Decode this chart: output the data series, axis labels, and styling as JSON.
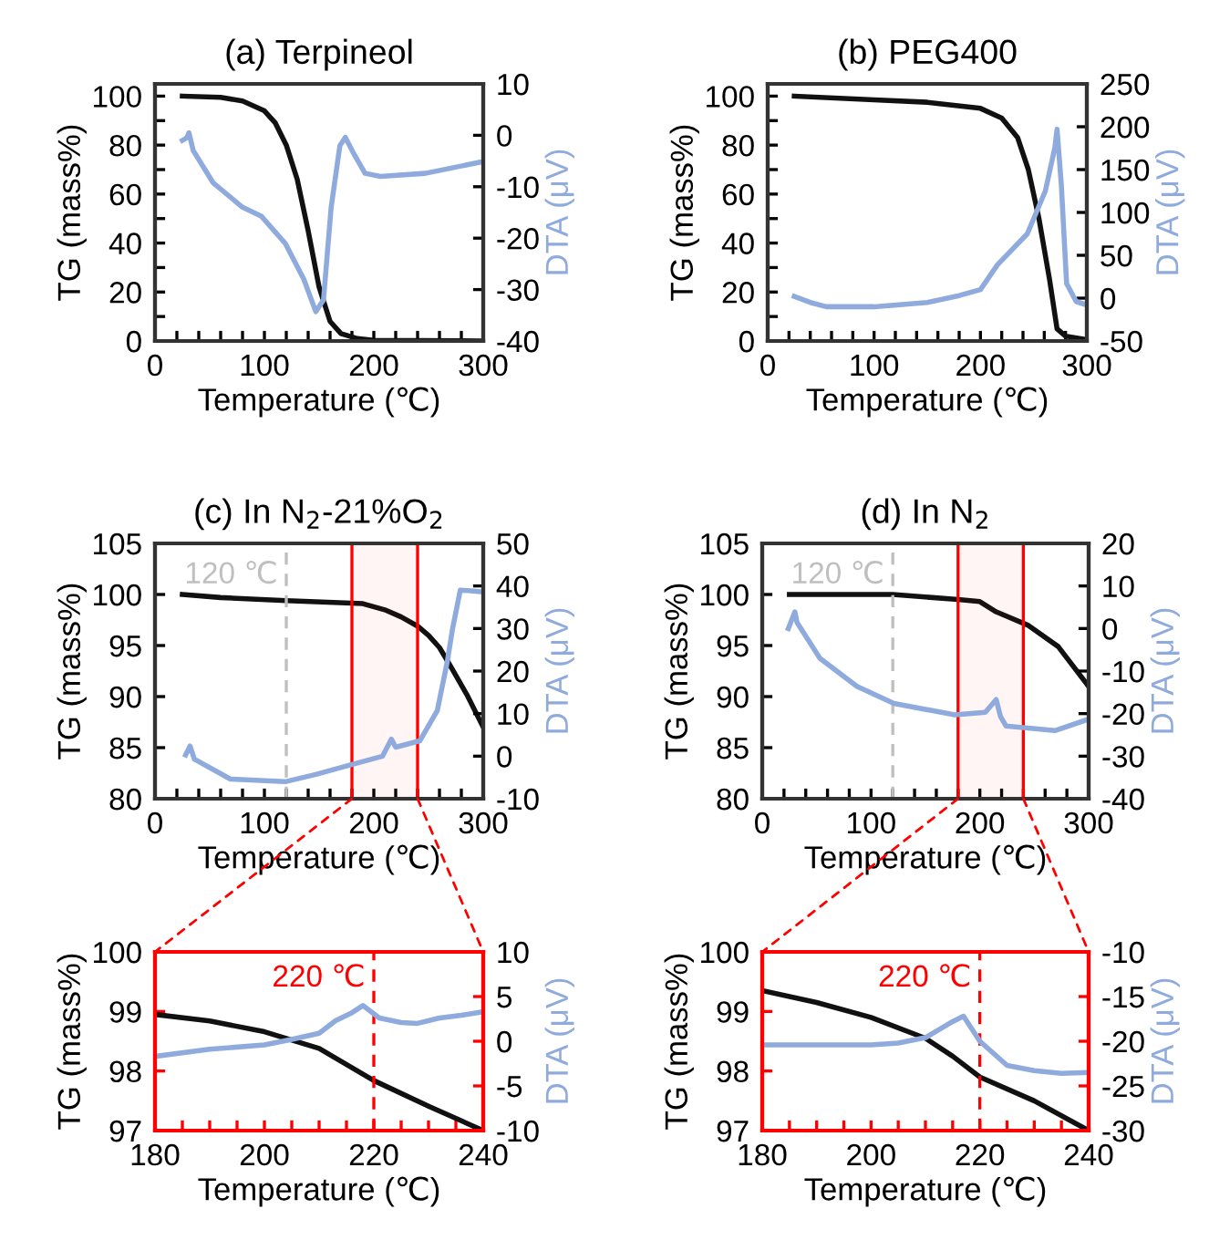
{
  "chart_data": [
    {
      "type": "line",
      "title": "(a) Terpineol",
      "xlabel": "Temperature (℃)",
      "ylabel": "TG (mass%)",
      "y2label": "DTA (μV)",
      "xlim": [
        0,
        300
      ],
      "xticks": [
        0,
        {
          "value": 20,
          "label": null
        },
        {
          "value": 40,
          "label": null
        },
        {
          "value": 60,
          "label": null
        },
        {
          "value": 80,
          "label": null
        },
        100,
        {
          "value": 120,
          "label": null
        },
        {
          "value": 140,
          "label": null
        },
        {
          "value": 160,
          "label": null
        },
        {
          "value": 180,
          "label": null
        },
        200,
        {
          "value": 220,
          "label": null
        },
        {
          "value": 240,
          "label": null
        },
        {
          "value": 260,
          "label": null
        },
        {
          "value": 280,
          "label": null
        },
        300
      ],
      "ylim": [
        0,
        105
      ],
      "yticks": [
        0,
        {
          "value": 10,
          "label": null
        },
        20,
        {
          "value": 30,
          "label": null
        },
        40,
        {
          "value": 50,
          "label": null
        },
        60,
        {
          "value": 70,
          "label": null
        },
        80,
        {
          "value": 90,
          "label": null
        },
        100
      ],
      "y2lim": [
        -40,
        10
      ],
      "y2ticks": [
        -40,
        -30,
        -20,
        -10,
        0,
        10
      ],
      "series": [
        {
          "color": "#111111",
          "x": [
            25,
            60,
            80,
            100,
            110,
            120,
            130,
            140,
            150,
            160,
            170,
            185,
            200,
            300
          ],
          "values": [
            100,
            99.5,
            98,
            94,
            89,
            80,
            66,
            45,
            22,
            8,
            3,
            1,
            0.3,
            0
          ]
        },
        {
          "color": "#8faadc",
          "axis": "y2",
          "x": [
            25,
            29,
            31,
            35,
            53,
            80,
            97,
            119,
            136,
            147,
            154,
            161,
            169,
            174,
            181,
            192,
            206,
            247,
            300
          ],
          "values": [
            -1,
            -0.5,
            0.5,
            -3,
            -9.2,
            -14,
            -15.7,
            -21,
            -28,
            -34.3,
            -32,
            -14,
            -2,
            -0.4,
            -3.3,
            -7.4,
            -8,
            -7.4,
            -5.1
          ]
        }
      ]
    },
    {
      "type": "line",
      "title": "(b) PEG400",
      "xlabel": "Temperature (℃)",
      "ylabel": "TG (mass%)",
      "y2label": "DTA (μV)",
      "xlim": [
        0,
        300
      ],
      "xticks": [
        0,
        {
          "value": 20,
          "label": null
        },
        {
          "value": 40,
          "label": null
        },
        {
          "value": 60,
          "label": null
        },
        {
          "value": 80,
          "label": null
        },
        100,
        {
          "value": 120,
          "label": null
        },
        {
          "value": 140,
          "label": null
        },
        {
          "value": 160,
          "label": null
        },
        {
          "value": 180,
          "label": null
        },
        200,
        {
          "value": 220,
          "label": null
        },
        {
          "value": 240,
          "label": null
        },
        {
          "value": 260,
          "label": null
        },
        {
          "value": 280,
          "label": null
        },
        300
      ],
      "ylim": [
        0,
        105
      ],
      "yticks": [
        0,
        {
          "value": 10,
          "label": null
        },
        20,
        {
          "value": 30,
          "label": null
        },
        40,
        {
          "value": 50,
          "label": null
        },
        60,
        {
          "value": 70,
          "label": null
        },
        80,
        {
          "value": 90,
          "label": null
        },
        100
      ],
      "y2lim": [
        -50,
        250
      ],
      "y2ticks": [
        -50,
        0,
        50,
        100,
        150,
        200,
        250
      ],
      "series": [
        {
          "color": "#111111",
          "x": [
            25,
            100,
            150,
            200,
            220,
            235,
            245,
            255,
            265,
            272,
            280,
            300
          ],
          "values": [
            100,
            98.5,
            97.5,
            95,
            91,
            83,
            70,
            50,
            25,
            5,
            2,
            0.5
          ]
        },
        {
          "color": "#8faadc",
          "axis": "y2",
          "x": [
            25,
            40,
            55,
            100,
            150,
            180,
            200,
            216,
            244,
            261,
            270,
            272,
            276,
            281,
            290,
            300
          ],
          "values": [
            2,
            -5,
            -10,
            -10,
            -5,
            3,
            10,
            39,
            75,
            125,
            176,
            197,
            133,
            17,
            -4,
            -8
          ]
        }
      ]
    },
    {
      "type": "line",
      "title": "(c) In N$_{2}$-21%O$_{2}$",
      "xlabel": "Temperature (℃)",
      "ylabel": "TG (mass%)",
      "y2label": "DTA (μV)",
      "xlim": [
        0,
        300
      ],
      "xticks": [
        0,
        {
          "value": 20,
          "label": null
        },
        {
          "value": 40,
          "label": null
        },
        {
          "value": 60,
          "label": null
        },
        {
          "value": 80,
          "label": null
        },
        100,
        {
          "value": 120,
          "label": null
        },
        {
          "value": 140,
          "label": null
        },
        {
          "value": 160,
          "label": null
        },
        {
          "value": 180,
          "label": null
        },
        200,
        {
          "value": 220,
          "label": null
        },
        {
          "value": 240,
          "label": null
        },
        {
          "value": 260,
          "label": null
        },
        {
          "value": 280,
          "label": null
        },
        300
      ],
      "ylim": [
        80,
        105
      ],
      "yticks": [
        80,
        85,
        90,
        95,
        100,
        105
      ],
      "y2lim": [
        -10,
        50
      ],
      "y2ticks": [
        -10,
        0,
        10,
        20,
        30,
        40,
        50
      ],
      "ref_lines": [
        {
          "axis": "x",
          "value": 120,
          "label": "120 ℃",
          "color": "#bfbfbf",
          "line_style": "dashed"
        }
      ],
      "bands": [
        {
          "axis": "x",
          "from": 180,
          "to": 240,
          "color": "#ff0000"
        }
      ],
      "series": [
        {
          "color": "#111111",
          "x": [
            25,
            60,
            120,
            190,
            210,
            225,
            240,
            250,
            260,
            270,
            285,
            300
          ],
          "values": [
            100,
            99.7,
            99.4,
            99.1,
            98.5,
            97.8,
            96.9,
            96,
            94.8,
            93,
            90.2,
            87
          ]
        },
        {
          "color": "#8faadc",
          "axis": "y2",
          "x": [
            28,
            32,
            36,
            69,
            119,
            147,
            178,
            208,
            216,
            220,
            242,
            258,
            267,
            272,
            279,
            286,
            300
          ],
          "values": [
            0.3,
            2.4,
            -0.7,
            -5.4,
            -6,
            -4.3,
            -2.1,
            0,
            4,
            2.1,
            3.6,
            10.7,
            22,
            30,
            39,
            38.9,
            38.6
          ]
        }
      ]
    },
    {
      "type": "line",
      "title": "(d) In N$_{2}$",
      "xlabel": "Temperature (℃)",
      "ylabel": "TG (mass%)",
      "y2label": "DTA (μV)",
      "xlim": [
        0,
        300
      ],
      "xticks": [
        0,
        {
          "value": 20,
          "label": null
        },
        {
          "value": 40,
          "label": null
        },
        {
          "value": 60,
          "label": null
        },
        {
          "value": 80,
          "label": null
        },
        100,
        {
          "value": 120,
          "label": null
        },
        {
          "value": 140,
          "label": null
        },
        {
          "value": 160,
          "label": null
        },
        {
          "value": 180,
          "label": null
        },
        200,
        {
          "value": 220,
          "label": null
        },
        {
          "value": 240,
          "label": null
        },
        {
          "value": 260,
          "label": null
        },
        {
          "value": 280,
          "label": null
        },
        300
      ],
      "ylim": [
        80,
        105
      ],
      "yticks": [
        80,
        85,
        90,
        95,
        100,
        105
      ],
      "y2lim": [
        -40,
        20
      ],
      "y2ticks": [
        -40,
        -30,
        -20,
        -10,
        0,
        10,
        20
      ],
      "ref_lines": [
        {
          "axis": "x",
          "value": 120,
          "label": "120 ℃",
          "color": "#bfbfbf",
          "line_style": "dashed"
        }
      ],
      "bands": [
        {
          "axis": "x",
          "from": 180,
          "to": 240,
          "color": "#ff0000"
        }
      ],
      "series": [
        {
          "color": "#111111",
          "x": [
            25,
            120,
            180,
            200,
            215,
            244,
            272,
            300
          ],
          "values": [
            100,
            100,
            99.5,
            99.3,
            98.3,
            97,
            94.9,
            91
          ]
        },
        {
          "color": "#8faadc",
          "axis": "y2",
          "x": [
            24,
            30,
            32,
            53,
            87,
            121,
            177,
            205,
            215,
            219,
            224,
            269,
            300
          ],
          "values": [
            0,
            3.9,
            1.4,
            -7,
            -13.6,
            -17.6,
            -20.3,
            -19.7,
            -16.7,
            -20.7,
            -22.9,
            -24,
            -21.3
          ]
        }
      ]
    },
    {
      "type": "line",
      "xlabel": "Temperature (℃)",
      "ylabel": "TG (mass%)",
      "y2label": "DTA (μV)",
      "xlim": [
        180,
        240
      ],
      "xticks": [
        180,
        {
          "value": 185,
          "label": null
        },
        {
          "value": 190,
          "label": null
        },
        {
          "value": 195,
          "label": null
        },
        200,
        {
          "value": 205,
          "label": null
        },
        {
          "value": 210,
          "label": null
        },
        {
          "value": 215,
          "label": null
        },
        220,
        {
          "value": 225,
          "label": null
        },
        {
          "value": 230,
          "label": null
        },
        {
          "value": 235,
          "label": null
        },
        240
      ],
      "ylim": [
        97,
        100
      ],
      "yticks": [
        97,
        98,
        99,
        100
      ],
      "y2lim": [
        -10,
        10
      ],
      "y2ticks": [
        -10,
        -5,
        0,
        5,
        10
      ],
      "ref_lines": [
        {
          "axis": "x",
          "value": 220,
          "label": "220 ℃",
          "color": "#ff0000",
          "line_style": "dashed"
        }
      ],
      "series": [
        {
          "color": "#111111",
          "x": [
            180,
            190,
            200,
            210,
            220,
            230,
            240
          ],
          "values": [
            98.95,
            98.84,
            98.66,
            98.38,
            97.84,
            97.41,
            97
          ]
        },
        {
          "color": "#8faadc",
          "axis": "y2",
          "x": [
            180,
            190,
            200,
            205,
            210,
            213,
            216,
            218,
            221,
            225,
            228,
            232,
            236,
            240
          ],
          "values": [
            -1.7,
            -0.9,
            -0.4,
            0.2,
            0.9,
            2.3,
            3.2,
            4,
            2.6,
            2.1,
            2,
            2.6,
            2.9,
            3.3
          ]
        }
      ]
    },
    {
      "type": "line",
      "xlabel": "Temperature (℃)",
      "ylabel": "TG (mass%)",
      "y2label": "DTA (μV)",
      "xlim": [
        180,
        240
      ],
      "xticks": [
        180,
        {
          "value": 185,
          "label": null
        },
        {
          "value": 190,
          "label": null
        },
        {
          "value": 195,
          "label": null
        },
        200,
        {
          "value": 205,
          "label": null
        },
        {
          "value": 210,
          "label": null
        },
        {
          "value": 215,
          "label": null
        },
        220,
        {
          "value": 225,
          "label": null
        },
        {
          "value": 230,
          "label": null
        },
        {
          "value": 235,
          "label": null
        },
        240
      ],
      "ylim": [
        97,
        100
      ],
      "yticks": [
        97,
        98,
        99,
        100
      ],
      "y2lim": [
        -30,
        -10
      ],
      "y2ticks": [
        -30,
        -25,
        -20,
        -15,
        -10
      ],
      "ref_lines": [
        {
          "axis": "x",
          "value": 220,
          "label": "220 ℃",
          "color": "#ff0000",
          "line_style": "dashed"
        }
      ],
      "series": [
        {
          "color": "#111111",
          "x": [
            180,
            190,
            200,
            210,
            215,
            220,
            230,
            240
          ],
          "values": [
            99.35,
            99.15,
            98.9,
            98.55,
            98.25,
            97.9,
            97.5,
            97
          ]
        },
        {
          "color": "#8faadc",
          "axis": "y2",
          "x": [
            180,
            190,
            200,
            205,
            210,
            215,
            217,
            220,
            225,
            230,
            235,
            240
          ],
          "values": [
            -20.4,
            -20.4,
            -20.4,
            -20.2,
            -19.6,
            -17.8,
            -17.2,
            -20,
            -22.7,
            -23.3,
            -23.6,
            -23.5
          ]
        }
      ]
    }
  ]
}
